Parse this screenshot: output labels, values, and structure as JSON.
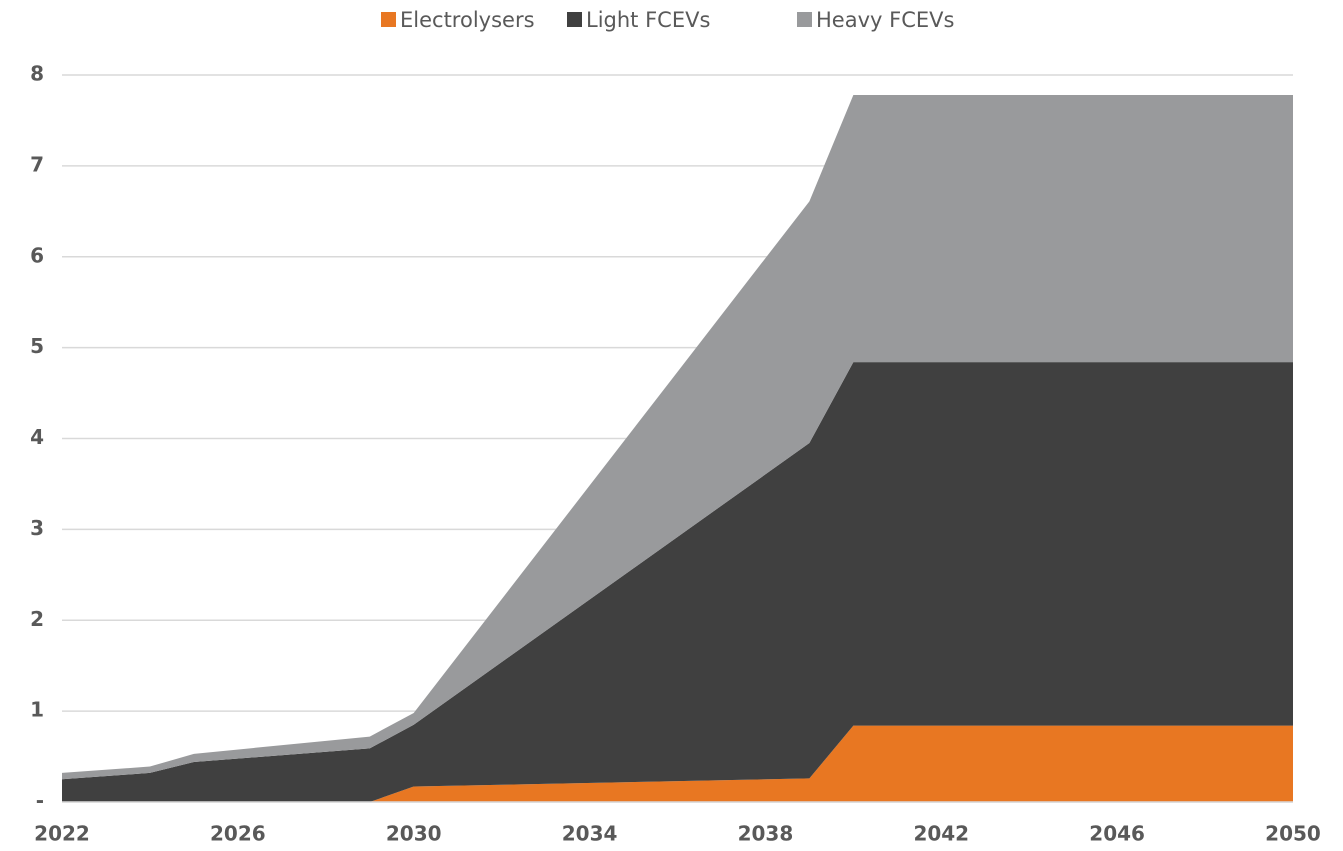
{
  "chart_data": {
    "type": "area",
    "stacked": true,
    "x": [
      2022,
      2024,
      2025,
      2029,
      2030,
      2039,
      2040,
      2050
    ],
    "series": [
      {
        "name": "Electrolysers",
        "color": "#e87722",
        "values": [
          0,
          0,
          0,
          0,
          0.17,
          0.26,
          0.84,
          0.84
        ]
      },
      {
        "name": "Light FCEVs",
        "color": "#404040",
        "values": [
          0.25,
          0.32,
          0.44,
          0.59,
          0.68,
          3.69,
          4.0,
          4.0
        ]
      },
      {
        "name": "Heavy FCEVs",
        "color": "#999a9c",
        "values": [
          0.07,
          0.07,
          0.09,
          0.13,
          0.13,
          2.66,
          2.94,
          2.94
        ]
      }
    ],
    "xlim": [
      2022,
      2050
    ],
    "xticks": [
      2022,
      2026,
      2030,
      2034,
      2038,
      2042,
      2046,
      2050
    ],
    "ylim": [
      0,
      8
    ],
    "yticks": [
      {
        "value": 0,
        "label": "-"
      },
      1,
      2,
      3,
      4,
      5,
      6,
      7,
      8
    ],
    "grid": true,
    "legend": "top"
  }
}
